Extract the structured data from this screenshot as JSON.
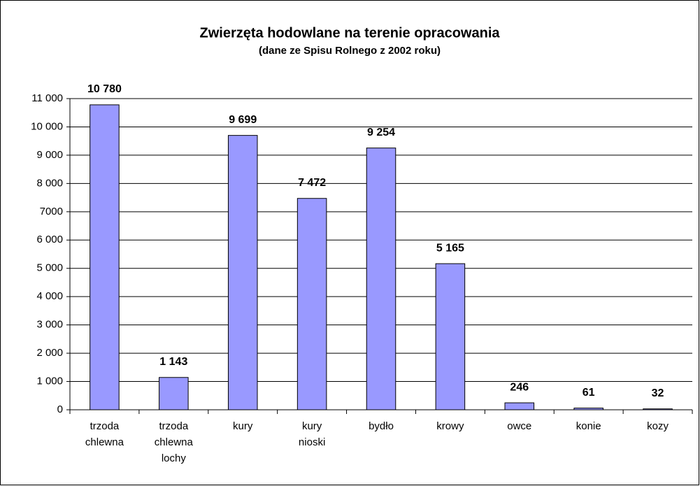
{
  "chart_data": {
    "type": "bar",
    "title": "Zwierzęta hodowlane na terenie opracowania",
    "subtitle": "(dane ze Spisu Rolnego z 2002 roku)",
    "categories": [
      "trzoda chlewna",
      "trzoda chlewna lochy",
      "kury",
      "kury nioski",
      "bydło",
      "krowy",
      "owce",
      "konie",
      "kozy"
    ],
    "values": [
      10780,
      1143,
      9699,
      7472,
      9254,
      5165,
      246,
      61,
      32
    ],
    "value_labels": [
      "10 780",
      "1 143",
      "9 699",
      "7 472",
      "9 254",
      "5 165",
      "246",
      "61",
      "32"
    ],
    "color": "#9999ff",
    "ylim": [
      0,
      11000
    ],
    "yticks": [
      0,
      {
        "value": 1000,
        "label": "1 000"
      },
      {
        "value": 2000,
        "label": "2 000"
      },
      {
        "value": 3000,
        "label": "3 000"
      },
      {
        "value": 4000,
        "label": "4 000"
      },
      {
        "value": 5000,
        "label": "5 000"
      },
      {
        "value": 6000,
        "label": "6 000"
      },
      {
        "value": 7000,
        "label": "7000"
      },
      {
        "value": 8000,
        "label": "8 000"
      },
      {
        "value": 9000,
        "label": "9 000"
      },
      {
        "value": 10000,
        "label": "10 000"
      },
      {
        "value": 11000,
        "label": "11 000"
      }
    ],
    "grid": true
  }
}
